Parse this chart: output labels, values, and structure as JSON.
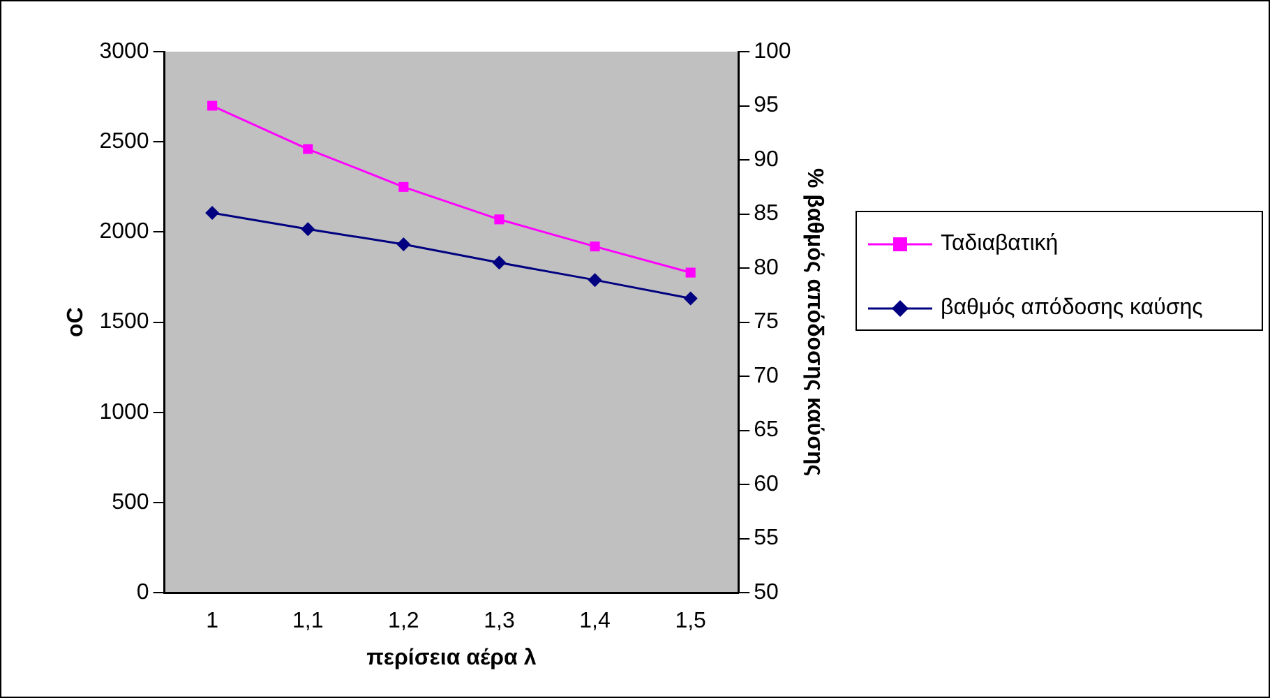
{
  "chart_data": {
    "type": "line",
    "xlabel": "περίσεια αέρα λ",
    "ylabel": "oC",
    "y2label": "% βαθμός απόδοσης καύσης",
    "categories": [
      "1",
      "1,1",
      "1,2",
      "1,3",
      "1,4",
      "1,5"
    ],
    "series": [
      {
        "name": "Ταδιαβατική",
        "color": "#ff00ff",
        "marker": "square",
        "values": [
          2700,
          2460,
          2250,
          2070,
          1920,
          1775
        ]
      },
      {
        "name": "βαθμός απόδοσης καύσης",
        "color": "#000080",
        "marker": "diamond",
        "axis": "y2",
        "values": [
          85.1,
          83.6,
          82.2,
          80.5,
          78.9,
          77.2
        ]
      }
    ],
    "ylim": [
      0,
      3000
    ],
    "yticks": [
      0,
      500,
      1000,
      1500,
      2000,
      2500,
      3000
    ],
    "y2lim": [
      50,
      100
    ],
    "y2ticks": [
      50,
      55,
      60,
      65,
      70,
      75,
      80,
      85,
      90,
      95,
      100
    ],
    "grid": false,
    "legend": "right",
    "line_style": "solid"
  }
}
